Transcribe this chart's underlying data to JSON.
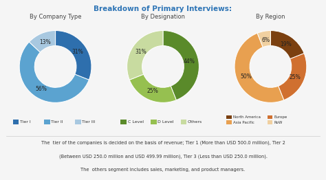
{
  "title": "Breakdown of Primary Interviews:",
  "title_color": "#2e75b6",
  "background_color": "#f5f5f5",
  "chart1_title": "By Company Type",
  "chart1_values": [
    31,
    56,
    13
  ],
  "chart1_labels": [
    "31%",
    "56%",
    "13%"
  ],
  "chart1_colors": [
    "#2e6fad",
    "#5ba3d0",
    "#a8c8e0"
  ],
  "chart1_legend": [
    "Tier I",
    "Tier II",
    "Tier III"
  ],
  "chart2_title": "By Designation",
  "chart2_values": [
    44,
    25,
    31
  ],
  "chart2_labels": [
    "44%",
    "25%",
    "31%"
  ],
  "chart2_colors": [
    "#5a8a2a",
    "#96c050",
    "#c8dba0"
  ],
  "chart2_legend": [
    "C Level",
    "D Level",
    "Others"
  ],
  "chart3_title": "By Region",
  "chart3_values": [
    19,
    25,
    50,
    6
  ],
  "chart3_labels": [
    "19%",
    "25%",
    "50%",
    "6%"
  ],
  "chart3_colors": [
    "#7b4010",
    "#d07030",
    "#e8a050",
    "#f0d0a0"
  ],
  "chart3_legend": [
    "North America",
    "Europe",
    "Asia Pacific",
    "RoW"
  ],
  "footnote1": "The  tier of the companies is decided on the basis of revenue; Tier 1 (More than USD 500.0 million), Tier 2",
  "footnote2": "(Between USD 250.0 million and USD 499.99 million), Tier 3 (Less than USD 250.0 million).",
  "footnote3": "The  others segment includes sales, marketing, and product managers."
}
